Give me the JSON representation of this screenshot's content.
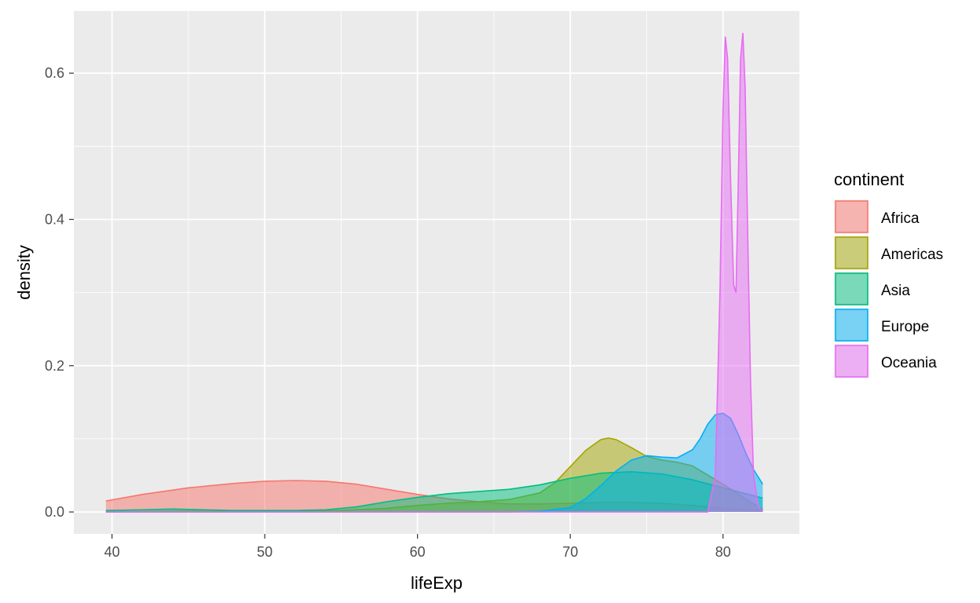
{
  "chart_data": {
    "type": "area",
    "title": "",
    "xlabel": "lifeExp",
    "ylabel": "density",
    "xlim": [
      37.5,
      85
    ],
    "ylim": [
      -0.03,
      0.685
    ],
    "xticks": [
      40,
      50,
      60,
      70,
      80
    ],
    "yticks": [
      0.0,
      0.2,
      0.4,
      0.6
    ],
    "xtick_labels": [
      "40",
      "50",
      "60",
      "70",
      "80"
    ],
    "ytick_labels": [
      "0.0",
      "0.2",
      "0.4",
      "0.6"
    ],
    "grid": true,
    "legend_title": "continent",
    "legend_position": "right",
    "fill_opacity": 0.5,
    "series": [
      {
        "name": "Africa",
        "color": "#F8766D",
        "x": [
          39.6,
          42,
          45,
          48,
          50,
          52,
          54,
          56,
          58,
          60,
          62,
          64,
          66,
          68,
          70,
          72,
          74,
          76,
          78,
          80,
          82.6
        ],
        "y": [
          0.015,
          0.024,
          0.033,
          0.039,
          0.042,
          0.043,
          0.042,
          0.038,
          0.031,
          0.024,
          0.018,
          0.014,
          0.011,
          0.011,
          0.012,
          0.013,
          0.013,
          0.012,
          0.009,
          0.005,
          0.002
        ]
      },
      {
        "name": "Americas",
        "color": "#A3A500",
        "x": [
          39.6,
          45,
          50,
          55,
          58,
          60,
          62,
          64,
          66,
          68,
          69,
          70,
          71,
          72,
          72.5,
          73,
          74,
          75,
          76,
          77,
          78,
          80,
          82.6
        ],
        "y": [
          0.0,
          0.001,
          0.001,
          0.002,
          0.005,
          0.009,
          0.012,
          0.014,
          0.017,
          0.026,
          0.04,
          0.062,
          0.084,
          0.099,
          0.101,
          0.099,
          0.088,
          0.076,
          0.071,
          0.068,
          0.063,
          0.038,
          0.003
        ]
      },
      {
        "name": "Asia",
        "color": "#00BF7D",
        "x": [
          39.6,
          42,
          44,
          46,
          48,
          50,
          52,
          54,
          56,
          58,
          60,
          62,
          64,
          66,
          68,
          70,
          72,
          74,
          76,
          78,
          80,
          82.6
        ],
        "y": [
          0.002,
          0.003,
          0.004,
          0.003,
          0.002,
          0.002,
          0.002,
          0.003,
          0.007,
          0.014,
          0.02,
          0.025,
          0.028,
          0.031,
          0.037,
          0.046,
          0.053,
          0.055,
          0.052,
          0.044,
          0.033,
          0.019
        ]
      },
      {
        "name": "Europe",
        "color": "#00B0F6",
        "x": [
          39.6,
          60,
          66,
          68,
          70,
          71,
          72,
          73,
          74,
          75,
          76,
          77,
          78,
          78.5,
          79,
          79.5,
          80,
          80.5,
          81,
          81.5,
          82,
          82.6
        ],
        "y": [
          0.0,
          0.0,
          0.0,
          0.001,
          0.006,
          0.018,
          0.036,
          0.056,
          0.071,
          0.077,
          0.075,
          0.074,
          0.085,
          0.1,
          0.12,
          0.133,
          0.135,
          0.128,
          0.106,
          0.08,
          0.058,
          0.038
        ]
      },
      {
        "name": "Oceania",
        "color": "#E76BF3",
        "x": [
          39.6,
          79,
          79.5,
          79.8,
          80.0,
          80.15,
          80.3,
          80.5,
          80.7,
          80.85,
          81.0,
          81.15,
          81.3,
          81.45,
          81.6,
          81.8,
          82.0,
          82.3,
          82.6
        ],
        "y": [
          0.0,
          0.0,
          0.05,
          0.3,
          0.55,
          0.65,
          0.62,
          0.45,
          0.31,
          0.3,
          0.45,
          0.62,
          0.655,
          0.58,
          0.4,
          0.18,
          0.05,
          0.008,
          0.0
        ]
      }
    ]
  }
}
